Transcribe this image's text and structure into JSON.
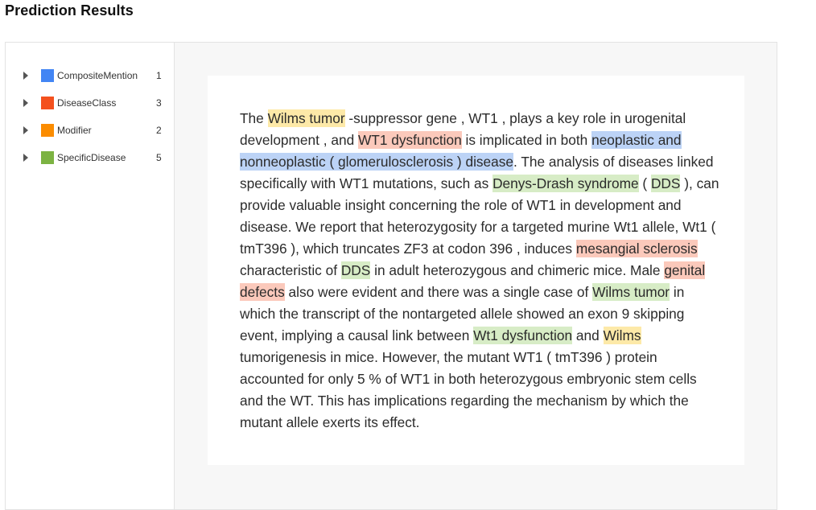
{
  "header": {
    "title": "Prediction Results"
  },
  "legend": {
    "items": [
      {
        "label": "CompositeMention",
        "count": "1",
        "color": "#4285f4"
      },
      {
        "label": "DiseaseClass",
        "count": "3",
        "color": "#f4511e"
      },
      {
        "label": "Modifier",
        "count": "2",
        "color": "#fb8c00"
      },
      {
        "label": "SpecificDisease",
        "count": "5",
        "color": "#7cb342"
      }
    ]
  },
  "highlight_colors": {
    "CompositeMention": "#bcd3f6",
    "DiseaseClass": "#fbc9bb",
    "Modifier": "#fde9a8",
    "SpecificDisease": "#d7ecc6"
  },
  "document": {
    "segments": [
      {
        "text": "The "
      },
      {
        "text": "Wilms tumor",
        "type": "Modifier"
      },
      {
        "text": " -suppressor gene , WT1 , plays a key role in urogenital development , and "
      },
      {
        "text": "WT1 dysfunction",
        "type": "DiseaseClass"
      },
      {
        "text": " is implicated in both "
      },
      {
        "text": "neoplastic and nonneoplastic ( glomerulosclerosis ) disease",
        "type": "CompositeMention"
      },
      {
        "text": ". The analysis of diseases linked specifically with WT1 mutations, such as "
      },
      {
        "text": "Denys-Drash syndrome",
        "type": "SpecificDisease"
      },
      {
        "text": " ( "
      },
      {
        "text": "DDS",
        "type": "SpecificDisease"
      },
      {
        "text": " ), can provide valuable insight concerning the role of WT1 in development and disease.  We report that heterozygosity for a targeted murine Wt1 allele, Wt1 ( tmT396 ), which truncates ZF3 at codon 396 , induces "
      },
      {
        "text": "mesangial sclerosis",
        "type": "DiseaseClass"
      },
      {
        "text": " characteristic of "
      },
      {
        "text": "DDS",
        "type": "SpecificDisease"
      },
      {
        "text": " in adult heterozygous and chimeric mice. Male "
      },
      {
        "text": "genital defects",
        "type": "DiseaseClass"
      },
      {
        "text": " also were evident and there was a single case of "
      },
      {
        "text": "Wilms tumor",
        "type": "SpecificDisease"
      },
      {
        "text": " in which the transcript of the nontargeted allele showed an exon 9 skipping event, implying a causal link between "
      },
      {
        "text": "Wt1 dysfunction",
        "type": "SpecificDisease"
      },
      {
        "text": " and "
      },
      {
        "text": "Wilms",
        "type": "Modifier"
      },
      {
        "text": " tumorigenesis in mice. However, the mutant WT1 ( tmT396 ) protein accounted for only 5 % of WT1 in both heterozygous embryonic stem cells and the WT. This has implications regarding the mechanism by which the mutant allele exerts its effect."
      }
    ]
  }
}
